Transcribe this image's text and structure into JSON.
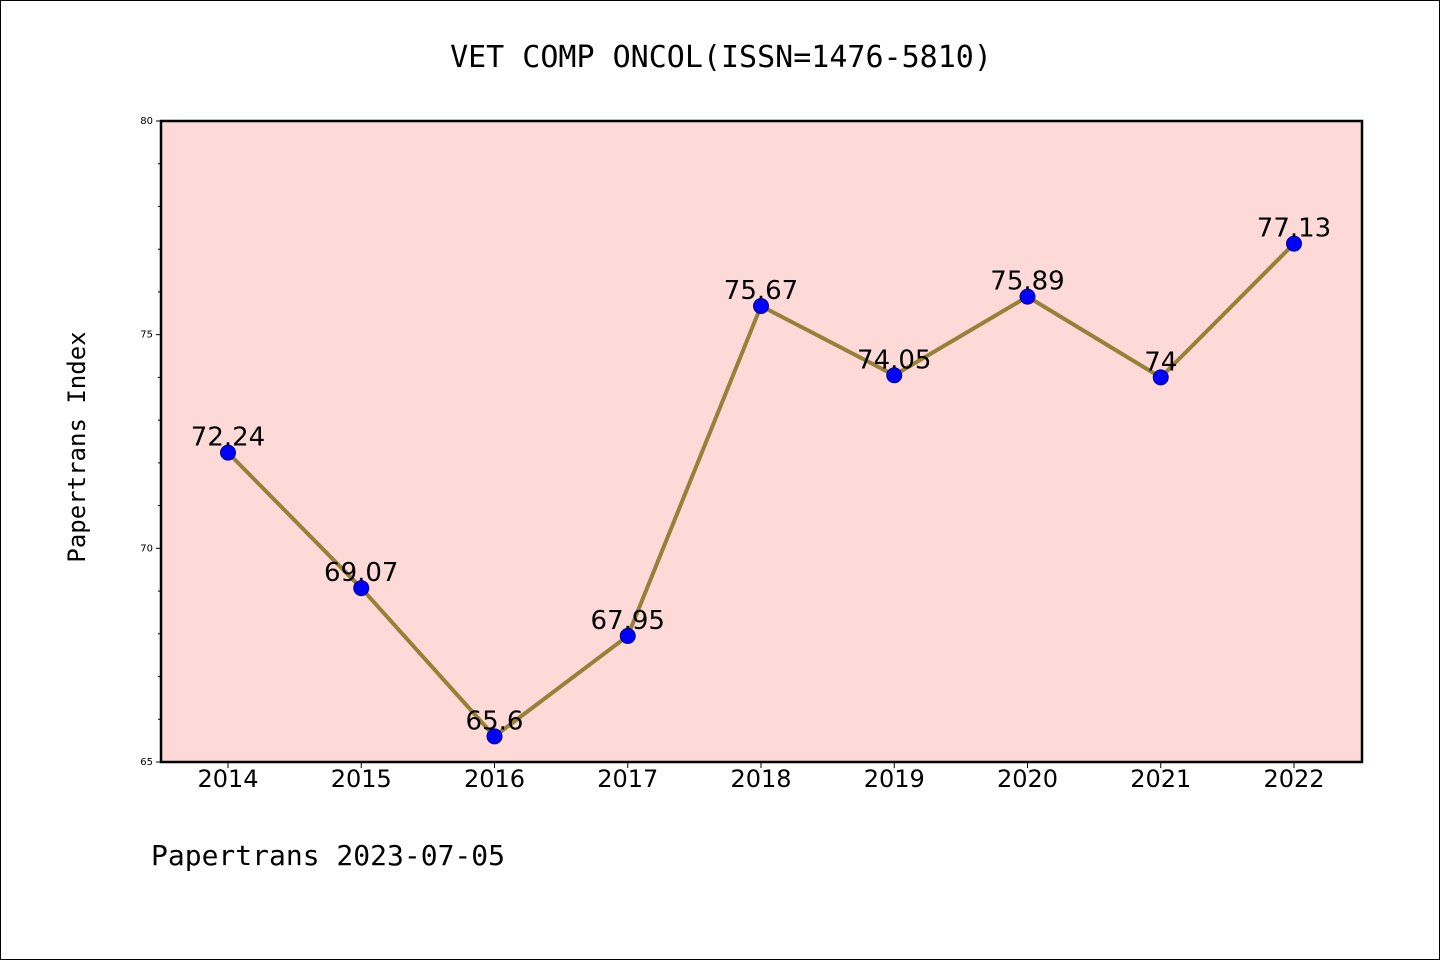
{
  "colors": {
    "plot_background": "#fddad7",
    "line": "#968137",
    "marker": "#0000ff"
  },
  "chart_data": {
    "type": "line",
    "title": "VET COMP ONCOL(ISSN=1476-5810)",
    "ylabel": "Papertrans Index",
    "xlabel": "",
    "categories": [
      "2014",
      "2015",
      "2016",
      "2017",
      "2018",
      "2019",
      "2020",
      "2021",
      "2022"
    ],
    "series": [
      {
        "values": [
          72.24,
          69.07,
          65.6,
          67.95,
          75.67,
          74.05,
          75.89,
          74,
          77.13
        ],
        "labels": [
          "72.24",
          "69.07",
          "65.6",
          "67.95",
          "75.67",
          "74.05",
          "75.89",
          "74",
          "77.13"
        ]
      }
    ],
    "ylim": [
      65,
      80
    ],
    "yticks": [
      "65",
      "70",
      "75",
      "80"
    ],
    "grid": false,
    "legend": "none"
  },
  "footer": {
    "text": "Papertrans 2023-07-05"
  }
}
